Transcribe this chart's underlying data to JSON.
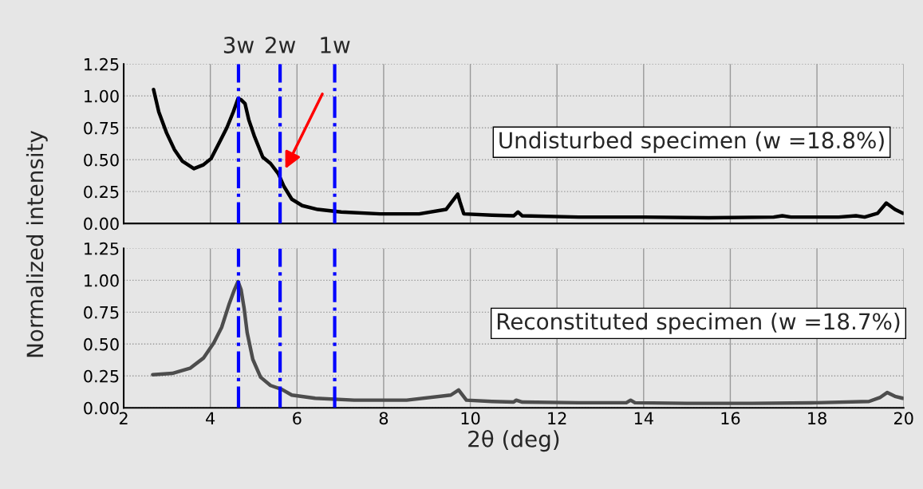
{
  "chart_data": [
    {
      "type": "line",
      "ylabel": "Normalized intensity",
      "xlim": [
        2,
        20
      ],
      "xticks": [
        2,
        4,
        6,
        8,
        10,
        12,
        14,
        16,
        18,
        20
      ],
      "ylim": [
        0,
        1.25
      ],
      "yticks": [
        {
          "value": 0,
          "label": "0.00"
        },
        0.25,
        {
          "value": 0.5,
          "label": "0.50"
        },
        0.75,
        {
          "value": 1,
          "label": "1.00"
        },
        1.25
      ],
      "grid": true,
      "tick_labels": "y",
      "series": [
        {
          "color": "#000000",
          "x": [
            2.69,
            2.81,
            2.99,
            3.17,
            3.35,
            3.62,
            3.84,
            4.02,
            4.2,
            4.38,
            4.53,
            4.64,
            4.71,
            4.8,
            4.89,
            5.01,
            5.21,
            5.39,
            5.57,
            5.7,
            5.88,
            6.12,
            6.48,
            7.02,
            7.92,
            8.82,
            9.44,
            9.71,
            9.76,
            9.85,
            10.5,
            11.0,
            11.1,
            11.2,
            12.5,
            14.0,
            15.5,
            17.0,
            17.2,
            17.4,
            18.5,
            18.9,
            19.1,
            19.4,
            19.6,
            19.8,
            19.98
          ],
          "values": [
            1.05,
            0.875,
            0.71,
            0.58,
            0.49,
            0.43,
            0.46,
            0.51,
            0.63,
            0.75,
            0.875,
            0.98,
            0.97,
            0.94,
            0.81,
            0.69,
            0.52,
            0.47,
            0.39,
            0.29,
            0.19,
            0.14,
            0.11,
            0.09,
            0.075,
            0.075,
            0.11,
            0.23,
            0.17,
            0.075,
            0.065,
            0.06,
            0.09,
            0.06,
            0.05,
            0.05,
            0.045,
            0.05,
            0.06,
            0.05,
            0.05,
            0.06,
            0.05,
            0.08,
            0.16,
            0.11,
            0.08
          ]
        }
      ],
      "ref_lines": [
        {
          "axis": "x",
          "value": 4.65,
          "label": "3w",
          "color": "#0000ff",
          "line_style": "dashdot"
        },
        {
          "axis": "x",
          "value": 5.61,
          "label": "2w",
          "color": "#0000ff",
          "line_style": "dashdot"
        },
        {
          "axis": "x",
          "value": 6.87,
          "label": "1w",
          "color": "#0000ff",
          "line_style": "dashdot"
        }
      ],
      "annotations": [
        "Undisturbed specimen (w =18.8%)"
      ]
    },
    {
      "type": "line",
      "xlabel": "2θ (deg)",
      "xlim": [
        2,
        20
      ],
      "xticks": [
        2,
        4,
        6,
        8,
        10,
        12,
        14,
        16,
        18,
        20
      ],
      "ylim": [
        0,
        1.25
      ],
      "yticks": [
        {
          "value": 0,
          "label": "0.00"
        },
        0.25,
        {
          "value": 0.5,
          "label": "0.50"
        },
        0.75,
        {
          "value": 1,
          "label": "1.00"
        },
        1.25
      ],
      "grid": true,
      "series": [
        {
          "color": "#4d4d4d",
          "x": [
            2.67,
            3.12,
            3.53,
            3.84,
            4.08,
            4.26,
            4.44,
            4.56,
            4.64,
            4.71,
            4.78,
            4.85,
            4.98,
            5.16,
            5.39,
            5.65,
            5.88,
            6.42,
            7.32,
            8.53,
            9.55,
            9.73,
            9.91,
            10.5,
            11.0,
            11.06,
            11.2,
            12.5,
            13.6,
            13.7,
            13.8,
            15.0,
            16.5,
            18.0,
            19.2,
            19.45,
            19.62,
            19.8,
            19.98
          ],
          "values": [
            0.26,
            0.27,
            0.31,
            0.39,
            0.51,
            0.63,
            0.82,
            0.93,
            0.99,
            0.925,
            0.78,
            0.59,
            0.38,
            0.24,
            0.175,
            0.145,
            0.1,
            0.075,
            0.06,
            0.06,
            0.1,
            0.14,
            0.06,
            0.05,
            0.045,
            0.06,
            0.045,
            0.04,
            0.04,
            0.06,
            0.04,
            0.035,
            0.035,
            0.04,
            0.05,
            0.08,
            0.12,
            0.09,
            0.075
          ]
        }
      ],
      "ref_lines": [
        {
          "axis": "x",
          "value": 4.65,
          "color": "#0000ff",
          "line_style": "dashdot"
        },
        {
          "axis": "x",
          "value": 5.61,
          "color": "#0000ff",
          "line_style": "dashdot"
        },
        {
          "axis": "x",
          "value": 6.87,
          "color": "#0000ff",
          "line_style": "dashdot"
        }
      ],
      "annotations": [
        "Reconstituted specimen (w =18.7%)"
      ]
    }
  ]
}
